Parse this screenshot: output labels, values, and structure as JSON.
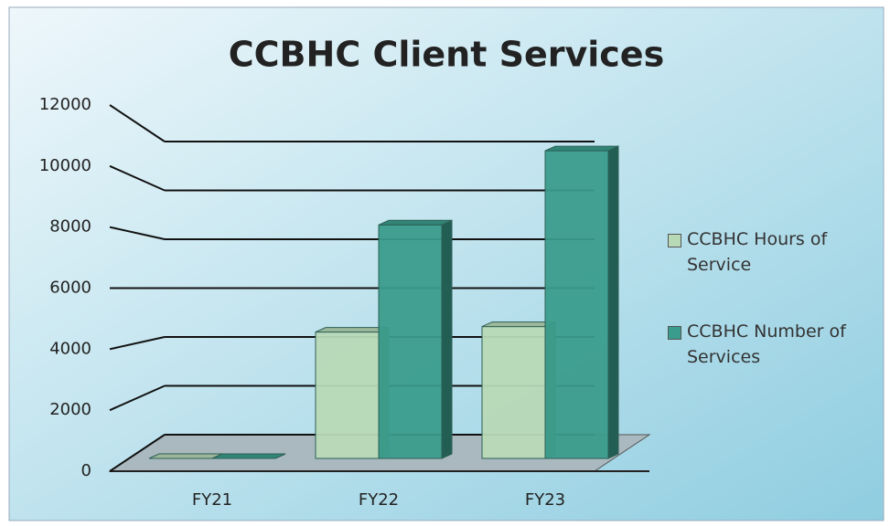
{
  "chart_data": {
    "type": "bar3d",
    "title": "CCBHC Client Services",
    "categories": [
      "FY21",
      "FY22",
      "FY23"
    ],
    "series": [
      {
        "name": "CCBHC Hours of Service",
        "color": "#b8d9b6",
        "values": [
          0,
          4600,
          4800
        ]
      },
      {
        "name": "CCBHC Number of Services",
        "color": "#3a9c8c",
        "values": [
          0,
          8500,
          11200
        ]
      }
    ],
    "ylim": [
      0,
      12000
    ],
    "yticks": [
      0,
      2000,
      4000,
      6000,
      8000,
      10000,
      12000
    ],
    "grid": true
  }
}
